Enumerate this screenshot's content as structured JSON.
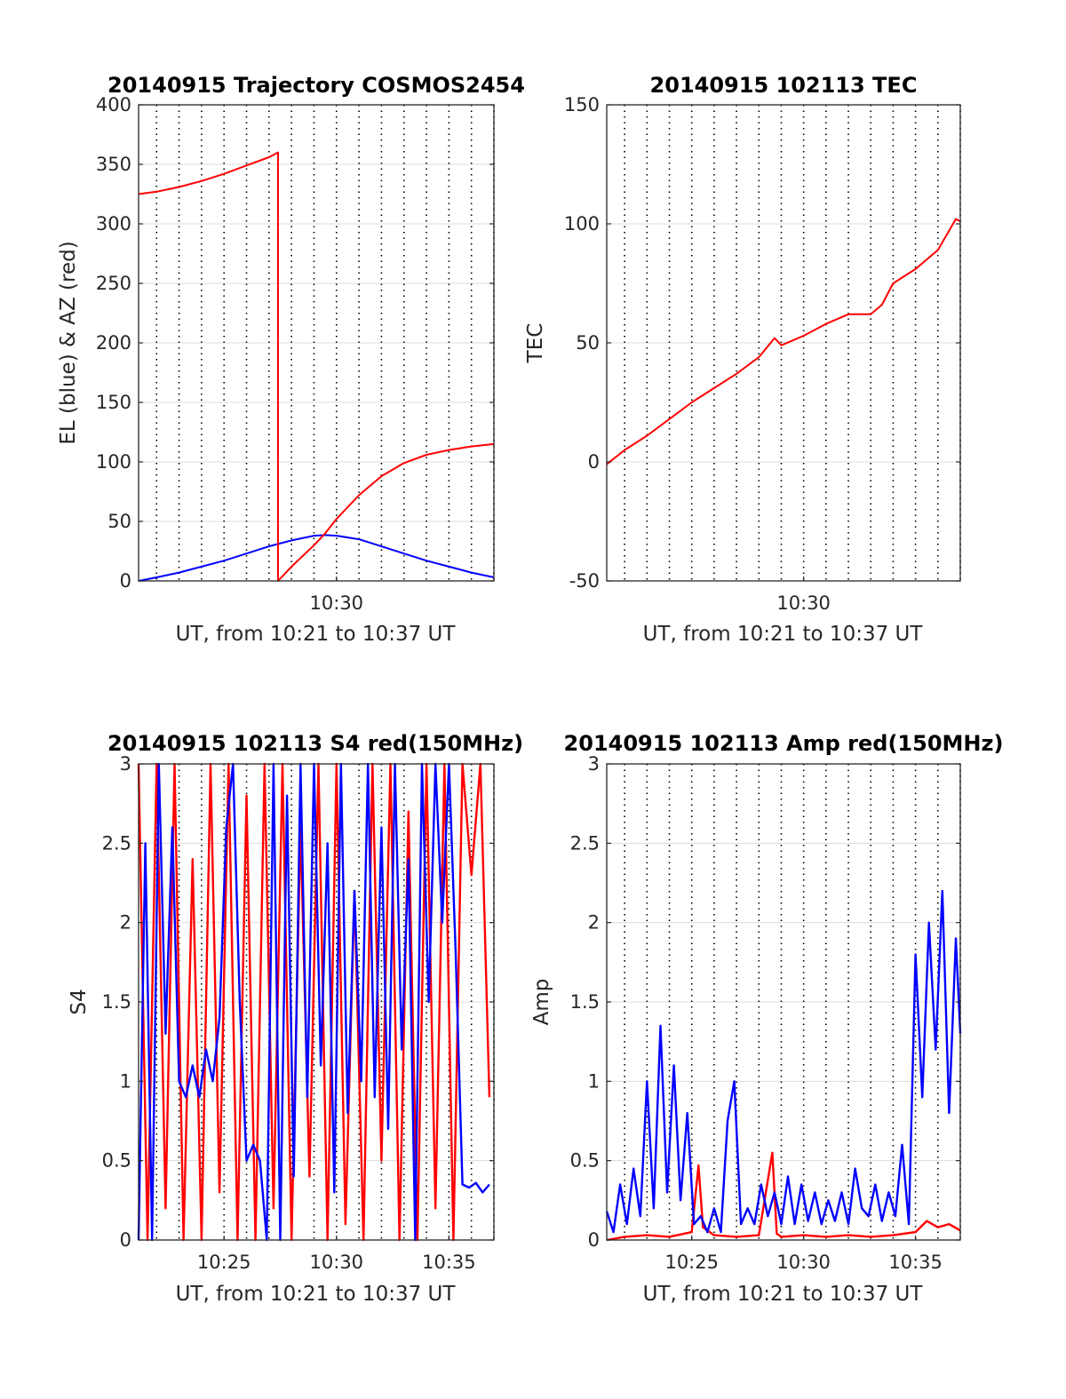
{
  "colors": {
    "elevation": "#0000ff",
    "azimuth": "#ff0000",
    "tec": "#ff0000",
    "channel_red": "#ff0000",
    "channel_blue": "#0000ff",
    "grid": "#dcdcdc",
    "vgrid": "#000000"
  },
  "chart_data": [
    {
      "id": "trajectory",
      "type": "line",
      "title": "20140915 Trajectory COSMOS2454",
      "xlabel": "UT, from 10:21 to 10:37 UT",
      "ylabel": "EL (blue) & AZ (red)",
      "x_unit": "minutes past 10:00 UT",
      "xlim": [
        21.2,
        37.0
      ],
      "ylim": [
        0,
        400
      ],
      "yticks": [
        0,
        50,
        100,
        150,
        200,
        250,
        300,
        350,
        400
      ],
      "ytick_labels": [
        "0",
        "50",
        "100",
        "150",
        "200",
        "250",
        "300",
        "350",
        "400"
      ],
      "xticks": [
        30
      ],
      "xtick_labels": [
        "10:30"
      ],
      "grid": "horizontal gridlines plus dotted vertical lines every minute",
      "series": [
        {
          "color": "#0000ff",
          "x": [
            21.2,
            22,
            23,
            24,
            25,
            26,
            27,
            28,
            29,
            29.5,
            30,
            31,
            32,
            33,
            34,
            35,
            36,
            37
          ],
          "y": [
            0,
            3,
            7,
            12,
            17,
            23,
            29,
            34,
            38,
            38.5,
            38,
            35,
            29,
            23,
            17,
            12,
            7,
            3
          ]
        },
        {
          "color": "#ff0000",
          "x": [
            21.2,
            22,
            23,
            24,
            25,
            26,
            27,
            27.4,
            27.4,
            28,
            29,
            29.5,
            30,
            31,
            32,
            33,
            34,
            35,
            36,
            37
          ],
          "y": [
            325,
            327,
            331,
            336,
            342,
            349,
            356,
            360,
            0,
            12,
            30,
            40,
            52,
            72,
            88,
            99,
            106,
            110,
            113,
            115
          ]
        }
      ]
    },
    {
      "id": "tec",
      "type": "line",
      "title": "20140915 102113 TEC",
      "xlabel": "UT, from 10:21 to 10:37 UT",
      "ylabel": "TEC",
      "x_unit": "minutes past 10:00 UT",
      "xlim": [
        21.2,
        37.0
      ],
      "ylim": [
        -50,
        150
      ],
      "yticks": [
        -50,
        0,
        50,
        100,
        150
      ],
      "ytick_labels": [
        "-50",
        "0",
        "50",
        "100",
        "150"
      ],
      "xticks": [
        30
      ],
      "xtick_labels": [
        "10:30"
      ],
      "grid": "horizontal gridlines plus dotted vertical lines every minute",
      "series": [
        {
          "color": "#ff0000",
          "x": [
            21.2,
            22,
            23,
            24,
            25,
            26,
            27,
            28,
            28.7,
            29,
            30,
            31,
            32,
            33,
            33.5,
            34,
            35,
            36,
            36.8,
            37
          ],
          "y": [
            -1,
            5,
            11,
            18,
            25,
            31,
            37,
            44,
            52,
            49,
            53,
            58,
            62,
            62,
            66,
            75,
            81,
            89,
            102,
            101
          ]
        }
      ]
    },
    {
      "id": "s4",
      "type": "line",
      "title": "20140915 102113 S4 red(150MHz)",
      "xlabel": "UT, from 10:21 to 10:37 UT",
      "ylabel": "S4",
      "x_unit": "minutes past 10:00 UT",
      "xlim": [
        21.2,
        37.0
      ],
      "ylim": [
        0,
        3
      ],
      "yticks": [
        0,
        0.5,
        1,
        1.5,
        2,
        2.5,
        3
      ],
      "ytick_labels": [
        "0",
        "0.5",
        "1",
        "1.5",
        "2",
        "2.5",
        "3"
      ],
      "xticks": [
        25,
        30,
        35
      ],
      "xtick_labels": [
        "10:25",
        "10:30",
        "10:35"
      ],
      "grid": "horizontal gridlines plus dotted vertical lines every minute",
      "series": [
        {
          "color": "#ff0000",
          "x": [
            21.2,
            21.6,
            22.0,
            22.4,
            22.8,
            23.2,
            23.6,
            24.0,
            24.4,
            24.8,
            25.2,
            25.6,
            26.0,
            26.4,
            26.8,
            27.2,
            27.6,
            28.0,
            28.4,
            28.8,
            29.2,
            29.6,
            30.0,
            30.4,
            30.8,
            31.2,
            31.6,
            32.0,
            32.4,
            32.8,
            33.2,
            33.6,
            34.0,
            34.4,
            34.8,
            35.2,
            35.6,
            36.0,
            36.4,
            36.8
          ],
          "y": [
            3,
            0,
            3,
            0.2,
            3,
            0,
            2.4,
            0,
            3,
            0.3,
            3,
            0,
            2.8,
            0,
            3,
            0.2,
            3,
            0,
            2.6,
            0.4,
            3,
            0,
            3,
            0.1,
            2.2,
            0,
            3,
            0.5,
            3,
            0,
            2.7,
            0,
            3,
            0.2,
            3,
            0,
            3,
            2.3,
            3,
            0.9
          ]
        },
        {
          "color": "#0000ff",
          "x": [
            21.2,
            21.5,
            21.8,
            22.1,
            22.4,
            22.7,
            23.0,
            23.3,
            23.6,
            23.9,
            24.2,
            24.5,
            24.8,
            25.1,
            25.4,
            25.7,
            26.0,
            26.3,
            26.6,
            26.9,
            27.2,
            27.5,
            27.8,
            28.1,
            28.4,
            28.7,
            29.0,
            29.3,
            29.6,
            29.9,
            30.2,
            30.5,
            30.8,
            31.1,
            31.4,
            31.7,
            32.0,
            32.3,
            32.6,
            32.9,
            33.2,
            33.5,
            33.8,
            34.1,
            34.4,
            34.7,
            35.0,
            35.3,
            35.6,
            35.9,
            36.2,
            36.5,
            36.8
          ],
          "y": [
            0,
            2.5,
            0,
            3,
            1.3,
            2.6,
            1.0,
            0.9,
            1.1,
            0.9,
            1.2,
            1.0,
            1.4,
            2.6,
            3,
            1.5,
            0.5,
            0.6,
            0.5,
            0,
            3,
            0,
            2.8,
            0.4,
            3,
            0.9,
            3,
            1.1,
            2.5,
            0.3,
            3,
            0.8,
            2.2,
            1.0,
            3,
            0.9,
            2.6,
            0.7,
            3,
            1.2,
            2.4,
            0,
            3,
            1.5,
            3,
            2.0,
            3,
            1.8,
            0.35,
            0.33,
            0.36,
            0.3,
            0.35
          ]
        }
      ]
    },
    {
      "id": "amp",
      "type": "line",
      "title": "20140915 102113 Amp red(150MHz)",
      "xlabel": "UT, from 10:21 to 10:37 UT",
      "ylabel": "Amp",
      "x_unit": "minutes past 10:00 UT",
      "xlim": [
        21.2,
        37.0
      ],
      "ylim": [
        0,
        3
      ],
      "yticks": [
        0,
        0.5,
        1,
        1.5,
        2,
        2.5,
        3
      ],
      "ytick_labels": [
        "0",
        "0.5",
        "1",
        "1.5",
        "2",
        "2.5",
        "3"
      ],
      "xticks": [
        25,
        30,
        35
      ],
      "xtick_labels": [
        "10:25",
        "10:30",
        "10:35"
      ],
      "grid": "horizontal gridlines plus dotted vertical lines every minute",
      "series": [
        {
          "color": "#ff0000",
          "x": [
            21.2,
            22,
            23,
            24,
            25,
            25.3,
            25.5,
            26,
            27,
            28,
            28.6,
            28.8,
            29,
            30,
            31,
            32,
            33,
            34,
            35,
            35.5,
            36,
            36.5,
            37
          ],
          "y": [
            0,
            0.02,
            0.03,
            0.02,
            0.05,
            0.47,
            0.08,
            0.03,
            0.02,
            0.03,
            0.55,
            0.04,
            0.02,
            0.03,
            0.02,
            0.03,
            0.02,
            0.03,
            0.05,
            0.12,
            0.08,
            0.1,
            0.06
          ]
        },
        {
          "color": "#0000ff",
          "x": [
            21.2,
            21.5,
            21.8,
            22.1,
            22.4,
            22.7,
            23.0,
            23.3,
            23.6,
            23.9,
            24.2,
            24.5,
            24.8,
            25.1,
            25.4,
            25.7,
            26.0,
            26.3,
            26.6,
            26.9,
            27.2,
            27.5,
            27.8,
            28.1,
            28.4,
            28.7,
            29.0,
            29.3,
            29.6,
            29.9,
            30.2,
            30.5,
            30.8,
            31.1,
            31.4,
            31.7,
            32.0,
            32.3,
            32.6,
            32.9,
            33.2,
            33.5,
            33.8,
            34.1,
            34.4,
            34.7,
            35.0,
            35.3,
            35.6,
            35.9,
            36.2,
            36.5,
            36.8,
            37.0
          ],
          "y": [
            0.18,
            0.05,
            0.35,
            0.1,
            0.45,
            0.15,
            1.0,
            0.2,
            1.35,
            0.3,
            1.1,
            0.25,
            0.8,
            0.1,
            0.15,
            0.05,
            0.2,
            0.05,
            0.75,
            1.0,
            0.1,
            0.2,
            0.1,
            0.35,
            0.15,
            0.3,
            0.1,
            0.4,
            0.1,
            0.35,
            0.12,
            0.3,
            0.1,
            0.25,
            0.12,
            0.3,
            0.1,
            0.45,
            0.2,
            0.15,
            0.35,
            0.12,
            0.3,
            0.15,
            0.6,
            0.1,
            1.8,
            0.9,
            2.0,
            1.2,
            2.2,
            0.8,
            1.9,
            1.3
          ]
        }
      ]
    }
  ]
}
